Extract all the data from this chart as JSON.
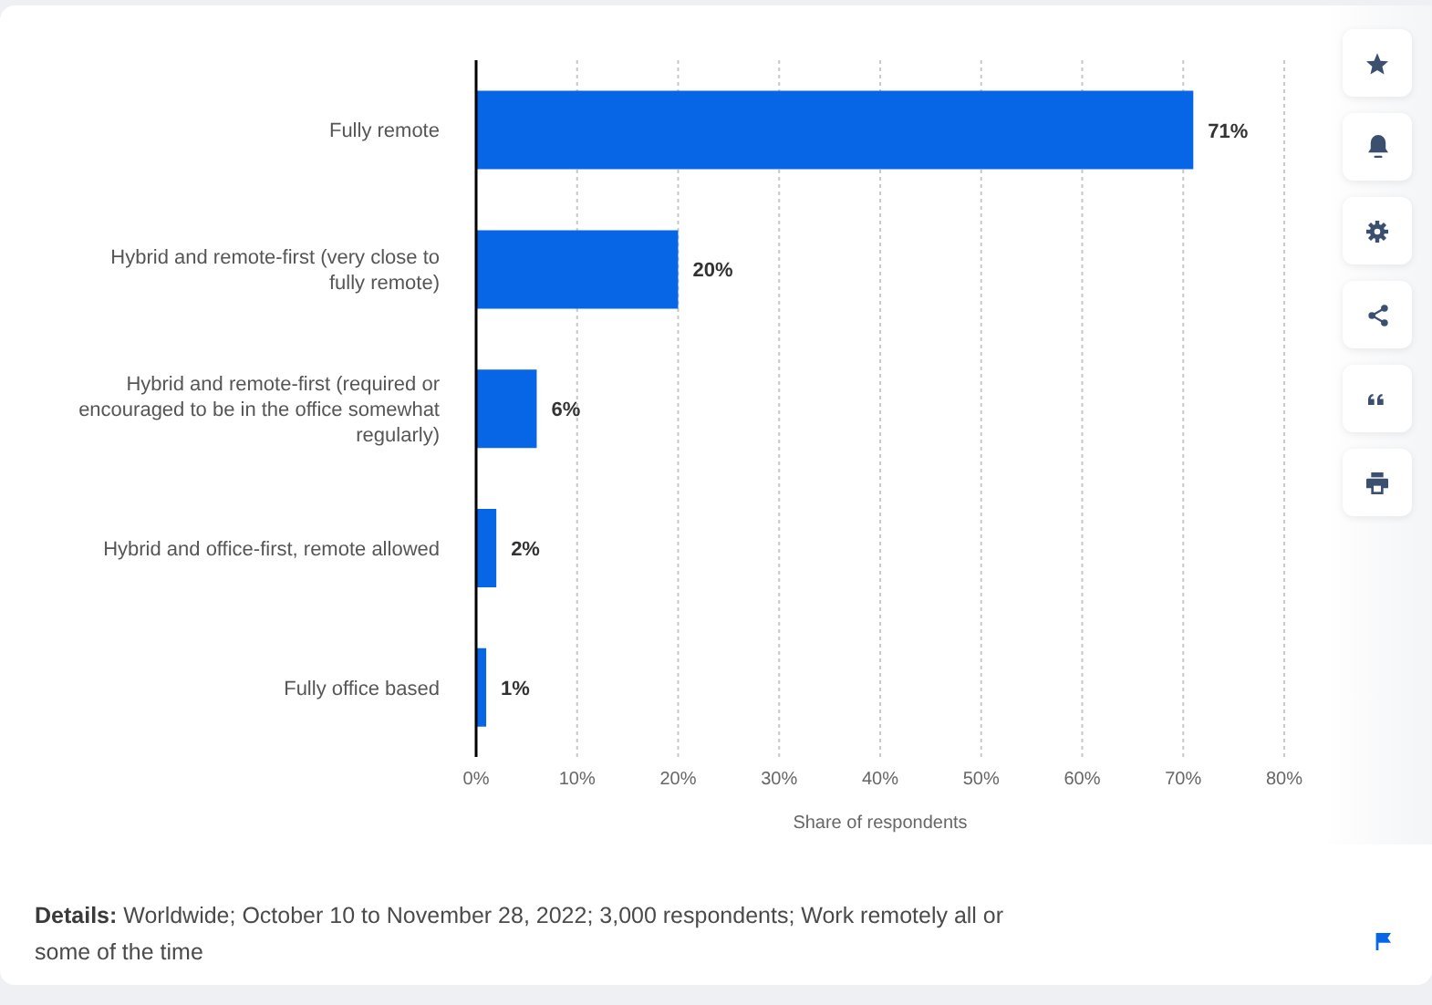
{
  "chart_data": {
    "type": "bar",
    "orientation": "horizontal",
    "categories": [
      "Fully remote",
      "Hybrid and remote-first (very close to fully remote)",
      "Hybrid and remote-first (required or encouraged to be in the office somewhat regularly)",
      "Hybrid and office-first, remote allowed",
      "Fully office based"
    ],
    "values": [
      71,
      20,
      6,
      2,
      1
    ],
    "value_labels": [
      "71%",
      "20%",
      "6%",
      "2%",
      "1%"
    ],
    "color": "#0766e6",
    "xlabel": "Share of respondents",
    "xlim": [
      0,
      80
    ],
    "xticks": [
      {
        "value": 0,
        "label": "0%"
      },
      {
        "value": 10,
        "label": "10%"
      },
      {
        "value": 20,
        "label": "20%"
      },
      {
        "value": 30,
        "label": "30%"
      },
      {
        "value": 40,
        "label": "40%"
      },
      {
        "value": 50,
        "label": "50%"
      },
      {
        "value": 60,
        "label": "60%"
      },
      {
        "value": 70,
        "label": "70%"
      },
      {
        "value": 80,
        "label": "80%"
      }
    ],
    "grid": "x",
    "annotations": [
      "Details: Worldwide; October 10 to November 28, 2022; 3,000 respondents; Work remotely all or some of the time"
    ]
  }
}
